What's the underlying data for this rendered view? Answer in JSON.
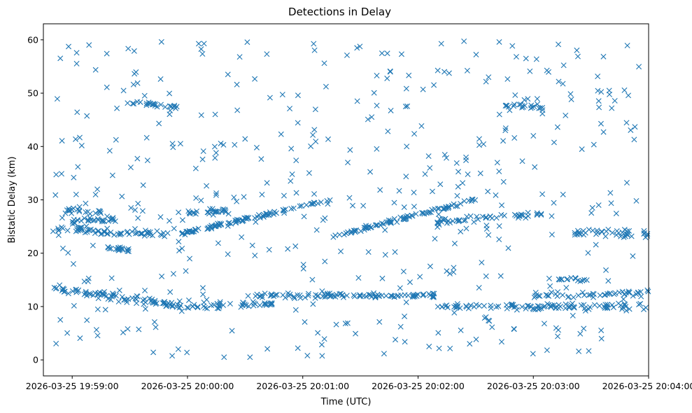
{
  "chart_data": {
    "type": "scatter",
    "title": "Detections in Delay",
    "xlabel": "Time (UTC)",
    "ylabel": "Bistatic Delay (km)",
    "x_unit": "seconds past 2026-03-25 19:59:00 UTC",
    "xlim": [
      -15,
      300
    ],
    "ylim": [
      -3,
      63
    ],
    "x_ticks": [
      {
        "value": 0,
        "label": "2026-03-25 19:59:00"
      },
      {
        "value": 60,
        "label": "2026-03-25 20:00:00"
      },
      {
        "value": 120,
        "label": "2026-03-25 20:01:00"
      },
      {
        "value": 180,
        "label": "2026-03-25 20:02:00"
      },
      {
        "value": 240,
        "label": "2026-03-25 20:03:00"
      },
      {
        "value": 300,
        "label": "2026-03-25 20:04:00"
      }
    ],
    "y_ticks": [
      0,
      10,
      20,
      30,
      40,
      50,
      60
    ],
    "grid": false,
    "legend": "none",
    "marker": "x",
    "color": "#1f77b4",
    "series": [
      {
        "structured_tracks": [
          {
            "x": [
              -10,
              60
            ],
            "y": [
              13.4,
              10.0
            ],
            "points": 90,
            "jitter": 0.5
          },
          {
            "x": [
              -5,
              15
            ],
            "y": [
              28.0,
              28.0
            ],
            "points": 20,
            "jitter": 0.6
          },
          {
            "x": [
              -10,
              10
            ],
            "y": [
              24.5,
              24.5
            ],
            "points": 25,
            "jitter": 0.6
          },
          {
            "x": [
              0,
              25
            ],
            "y": [
              26.0,
              26.5
            ],
            "points": 30,
            "jitter": 0.5
          },
          {
            "x": [
              10,
              50
            ],
            "y": [
              24.0,
              23.5
            ],
            "points": 40,
            "jitter": 0.5
          },
          {
            "x": [
              18,
              30
            ],
            "y": [
              21.0,
              20.5
            ],
            "points": 18,
            "jitter": 0.3
          },
          {
            "x": [
              28,
              55
            ],
            "y": [
              48.2,
              47.5
            ],
            "points": 25,
            "jitter": 0.4
          },
          {
            "x": [
              55,
              135
            ],
            "y": [
              23.5,
              30.0
            ],
            "points": 90,
            "jitter": 0.3
          },
          {
            "x": [
              60,
              105
            ],
            "y": [
              10.0,
              10.5
            ],
            "points": 40,
            "jitter": 0.5
          },
          {
            "x": [
              60,
              80
            ],
            "y": [
              27.5,
              28.0
            ],
            "points": 25,
            "jitter": 0.4
          },
          {
            "x": [
              95,
              190
            ],
            "y": [
              12.0,
              12.0
            ],
            "points": 100,
            "jitter": 0.4
          },
          {
            "x": [
              135,
              210
            ],
            "y": [
              23.0,
              30.0
            ],
            "points": 80,
            "jitter": 0.3
          },
          {
            "x": [
              190,
              300
            ],
            "y": [
              10.0,
              10.0
            ],
            "points": 100,
            "jitter": 0.5
          },
          {
            "x": [
              190,
              250
            ],
            "y": [
              26.0,
              27.5
            ],
            "points": 50,
            "jitter": 0.5
          },
          {
            "x": [
              225,
              245
            ],
            "y": [
              47.8,
              47.2
            ],
            "points": 20,
            "jitter": 0.3
          },
          {
            "x": [
              240,
              300
            ],
            "y": [
              12.0,
              12.5
            ],
            "points": 50,
            "jitter": 0.5
          },
          {
            "x": [
              260,
              300
            ],
            "y": [
              24.0,
              23.5
            ],
            "points": 40,
            "jitter": 0.6
          },
          {
            "x": [
              250,
              270
            ],
            "y": [
              15.0,
              15.0
            ],
            "points": 15,
            "jitter": 0.3
          }
        ],
        "noise": {
          "x_range": [
            -10,
            295
          ],
          "y_range": [
            0.5,
            60
          ],
          "points": 450
        }
      }
    ]
  }
}
